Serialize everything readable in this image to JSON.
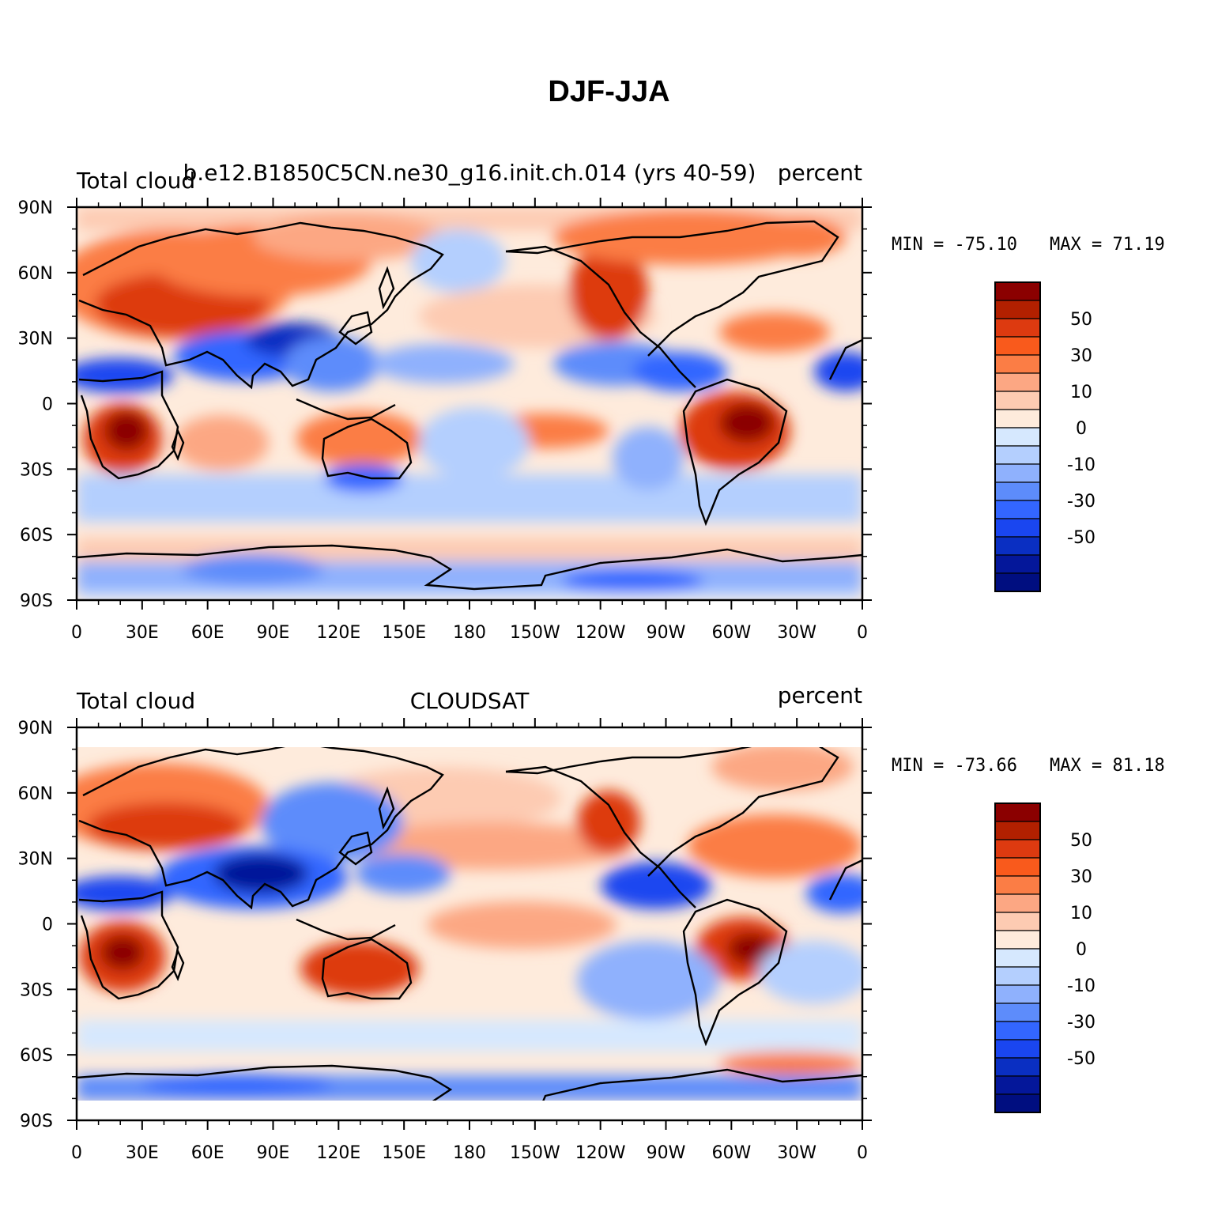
{
  "title": "DJF-JJA",
  "panels": [
    {
      "left_label": "Total cloud",
      "center_label": "b.e12.B1850C5CN.ne30_g16.init.ch.014 (yrs 40-59)",
      "right_label": "percent",
      "min_label": "MIN = -75.10",
      "max_label": "MAX =  71.19",
      "min": -75.1,
      "max": 71.19
    },
    {
      "left_label": "Total cloud",
      "center_label": "CLOUDSAT",
      "right_label": "percent",
      "min_label": "MIN = -73.66",
      "max_label": "MAX =  81.18",
      "min": -73.66,
      "max": 81.18
    }
  ],
  "axes": {
    "x_ticks": [
      "0",
      "30E",
      "60E",
      "90E",
      "120E",
      "150E",
      "180",
      "150W",
      "120W",
      "90W",
      "60W",
      "30W",
      "0"
    ],
    "y_ticks": [
      "90N",
      "60N",
      "30N",
      "0",
      "30S",
      "60S",
      "90S"
    ]
  },
  "colorbar": {
    "labels": [
      "50",
      "30",
      "10",
      "0",
      "-10",
      "-30",
      "-50"
    ],
    "colors": [
      "#8b0000",
      "#b22000",
      "#dd3a10",
      "#f95a1c",
      "#fb7d45",
      "#fca783",
      "#fdcbb2",
      "#feebdc",
      "#d6e8fe",
      "#b4cffe",
      "#8fb1fd",
      "#5d8cfb",
      "#3366ff",
      "#1a46f0",
      "#0a2fc2",
      "#04179a",
      "#000e80"
    ]
  },
  "palette": {
    "land_outline": "#000000",
    "ocean_neutral": "#feebdc"
  }
}
